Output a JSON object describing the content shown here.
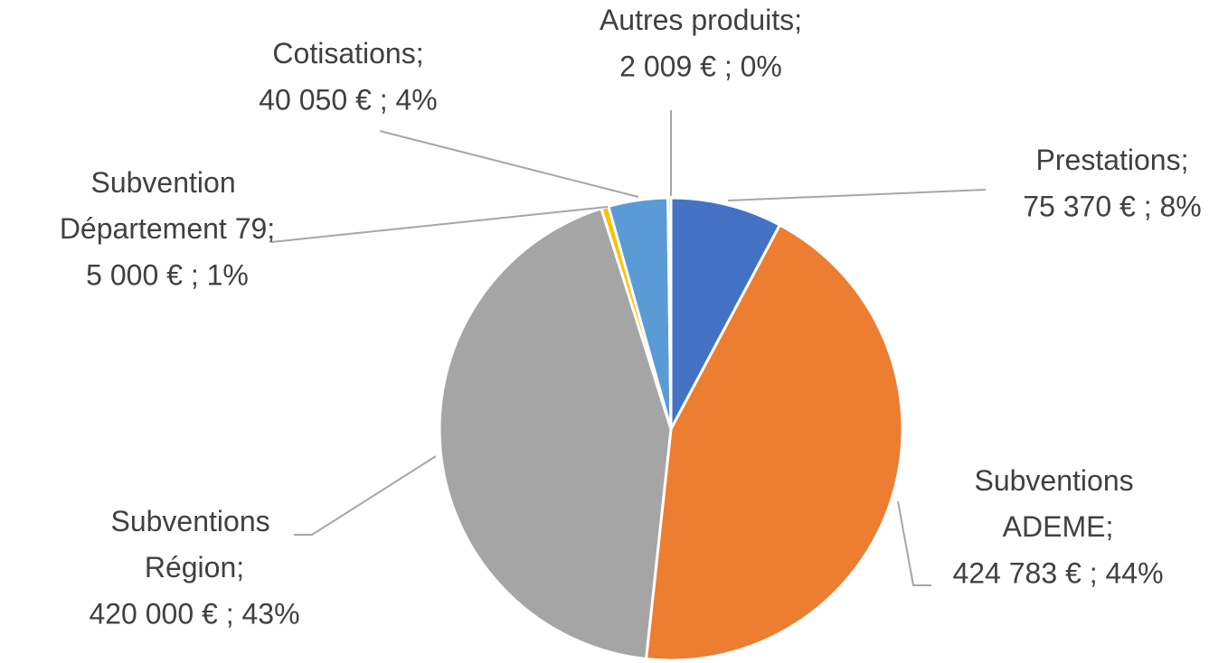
{
  "chart_data": {
    "type": "pie",
    "categories": [
      "Prestations;",
      "Subventions ADEME;",
      "Subventions Région;",
      "Subvention Département 79;",
      "Cotisations;",
      "Autres produits;"
    ],
    "values": [
      75370,
      424783,
      420000,
      5000,
      40050,
      2009
    ],
    "value_labels": [
      "75 370 € ; 8%",
      "424 783 € ; 44%",
      "420 000 € ; 43%",
      "5 000 € ; 1%",
      "40 050 € ; 4%",
      "2 009 € ; 0%"
    ],
    "colors": [
      "#4472c4",
      "#ed7d31",
      "#a5a5a5",
      "#ffc000",
      "#5b9bd5",
      "#70ad47"
    ]
  }
}
